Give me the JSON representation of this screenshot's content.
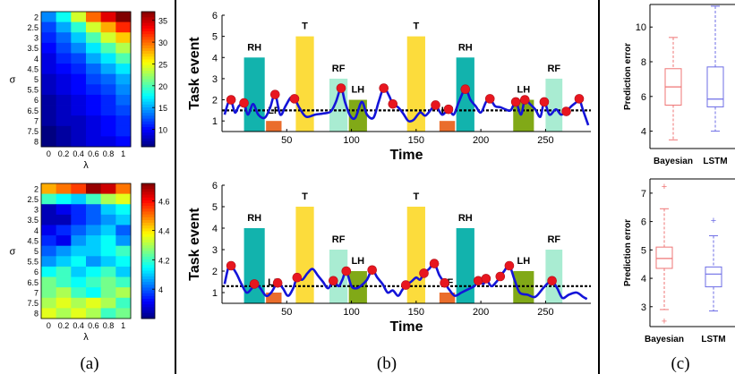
{
  "captions": {
    "a": "(a)",
    "b": "(b)",
    "c": "(c)"
  },
  "chart_data": [
    {
      "id": "heatmap-top",
      "type": "heatmap",
      "xlabel": "λ",
      "ylabel": "σ",
      "x_ticks": [
        "0",
        "0.2",
        "0.4",
        "0.6",
        "0.8",
        "1"
      ],
      "y_ticks": [
        "2",
        "2.5",
        "3",
        "3.5",
        "4",
        "4.5",
        "5",
        "5.5",
        "6",
        "6.5",
        "7",
        "7.5",
        "8"
      ],
      "colorbar_ticks": [
        10,
        15,
        20,
        25,
        30,
        35
      ],
      "clim": [
        6,
        37
      ],
      "values": [
        [
          14,
          18,
          24,
          30,
          34,
          37
        ],
        [
          12,
          15,
          19,
          24,
          28,
          32
        ],
        [
          11,
          13,
          16,
          20,
          24,
          27
        ],
        [
          10,
          12,
          14,
          17,
          20,
          23
        ],
        [
          9,
          11,
          12,
          15,
          17,
          20
        ],
        [
          9,
          10,
          11,
          13,
          15,
          17
        ],
        [
          8,
          9,
          10,
          12,
          13,
          15
        ],
        [
          8,
          9,
          10,
          11,
          12,
          14
        ],
        [
          7,
          8,
          9,
          10,
          11,
          13
        ],
        [
          7,
          8,
          9,
          10,
          11,
          12
        ],
        [
          7,
          8,
          8,
          9,
          10,
          11
        ],
        [
          6,
          7,
          8,
          9,
          10,
          11
        ],
        [
          6,
          7,
          8,
          9,
          9,
          10
        ]
      ]
    },
    {
      "id": "heatmap-bottom",
      "type": "heatmap",
      "xlabel": "λ",
      "ylabel": "σ",
      "x_ticks": [
        "0",
        "0.2",
        "0.4",
        "0.6",
        "0.8",
        "1"
      ],
      "y_ticks": [
        "2",
        "2.5",
        "3",
        "3.5",
        "4",
        "4.5",
        "5",
        "5.5",
        "6",
        "6.5",
        "7",
        "7.5",
        "8"
      ],
      "colorbar_ticks": [
        4,
        4.2,
        4.4,
        4.6
      ],
      "clim": [
        3.8,
        4.72
      ],
      "values": [
        [
          4.45,
          4.5,
          4.55,
          4.7,
          4.65,
          4.5
        ],
        [
          4.2,
          4.15,
          4.1,
          4.2,
          4.3,
          4.35
        ],
        [
          3.85,
          3.9,
          3.95,
          4.0,
          4.1,
          4.15
        ],
        [
          3.85,
          3.85,
          3.95,
          4.0,
          4.05,
          4.1
        ],
        [
          3.9,
          3.95,
          4.0,
          4.05,
          4.1,
          4.0
        ],
        [
          3.95,
          3.9,
          4.05,
          4.1,
          4.15,
          4.05
        ],
        [
          4.0,
          4.05,
          4.1,
          4.1,
          4.15,
          4.2
        ],
        [
          4.05,
          4.1,
          4.15,
          4.05,
          4.1,
          4.15
        ],
        [
          4.15,
          4.2,
          4.1,
          4.15,
          4.2,
          4.1
        ],
        [
          4.25,
          4.2,
          4.15,
          4.2,
          4.25,
          4.2
        ],
        [
          4.25,
          4.3,
          4.2,
          4.15,
          4.25,
          4.3
        ],
        [
          4.3,
          4.35,
          4.3,
          4.35,
          4.3,
          4.2
        ],
        [
          4.35,
          4.3,
          4.35,
          4.3,
          4.2,
          4.25
        ]
      ]
    },
    {
      "id": "events-top",
      "type": "bar",
      "xlabel": "Time",
      "ylabel": "Task event",
      "xlim": [
        0,
        285
      ],
      "ylim": [
        0.5,
        6
      ],
      "x_ticks": [
        50,
        100,
        150,
        200,
        250
      ],
      "y_ticks": [
        1,
        2,
        3,
        4,
        5,
        6
      ],
      "threshold": 1.5,
      "events": [
        {
          "label": "RH",
          "x0": 17,
          "x1": 33,
          "level": 4,
          "color": "#12b3ad"
        },
        {
          "label": "LF",
          "x0": 34,
          "x1": 46,
          "level": 1,
          "color": "#ea6d2c"
        },
        {
          "label": "T",
          "x0": 57,
          "x1": 71,
          "level": 5,
          "color": "#fcdc3c"
        },
        {
          "label": "RF",
          "x0": 83,
          "x1": 97,
          "level": 3,
          "color": "#a9ecd2"
        },
        {
          "label": "LH",
          "x0": 98,
          "x1": 112,
          "level": 2,
          "color": "#81a917"
        },
        {
          "label": "T",
          "x0": 143,
          "x1": 157,
          "level": 5,
          "color": "#fcdc3c"
        },
        {
          "label": "LF",
          "x0": 168,
          "x1": 180,
          "level": 1,
          "color": "#ea6d2c"
        },
        {
          "label": "RH",
          "x0": 181,
          "x1": 195,
          "level": 4,
          "color": "#12b3ad"
        },
        {
          "label": "LH",
          "x0": 225,
          "x1": 241,
          "level": 2,
          "color": "#81a917"
        },
        {
          "label": "RF",
          "x0": 250,
          "x1": 263,
          "level": 3,
          "color": "#a9ecd2"
        }
      ],
      "markers": [
        {
          "x": 7,
          "y": 2.0
        },
        {
          "x": 17,
          "y": 1.85
        },
        {
          "x": 41,
          "y": 2.25
        },
        {
          "x": 56,
          "y": 2.05
        },
        {
          "x": 92,
          "y": 2.55
        },
        {
          "x": 125,
          "y": 2.55
        },
        {
          "x": 132,
          "y": 1.8
        },
        {
          "x": 165,
          "y": 1.75
        },
        {
          "x": 175,
          "y": 1.55
        },
        {
          "x": 188,
          "y": 2.5
        },
        {
          "x": 207,
          "y": 2.05
        },
        {
          "x": 227,
          "y": 1.9
        },
        {
          "x": 234,
          "y": 2.0
        },
        {
          "x": 249,
          "y": 1.9
        },
        {
          "x": 266,
          "y": 1.45
        },
        {
          "x": 276,
          "y": 2.05
        }
      ],
      "signal": [
        [
          2,
          1.3
        ],
        [
          5,
          1.9
        ],
        [
          7,
          2.0
        ],
        [
          10,
          1.4
        ],
        [
          13,
          1.7
        ],
        [
          17,
          1.85
        ],
        [
          20,
          1.3
        ],
        [
          24,
          1.8
        ],
        [
          28,
          1.3
        ],
        [
          33,
          1.15
        ],
        [
          37,
          1.6
        ],
        [
          41,
          2.25
        ],
        [
          45,
          1.3
        ],
        [
          49,
          1.7
        ],
        [
          53,
          2.1
        ],
        [
          56,
          2.05
        ],
        [
          60,
          1.6
        ],
        [
          65,
          1.2
        ],
        [
          72,
          1.3
        ],
        [
          78,
          1.35
        ],
        [
          84,
          1.45
        ],
        [
          88,
          1.9
        ],
        [
          92,
          2.55
        ],
        [
          95,
          1.9
        ],
        [
          99,
          1.25
        ],
        [
          103,
          1.15
        ],
        [
          108,
          1.9
        ],
        [
          112,
          1.3
        ],
        [
          117,
          1.15
        ],
        [
          121,
          1.9
        ],
        [
          125,
          2.55
        ],
        [
          129,
          2.2
        ],
        [
          132,
          1.8
        ],
        [
          136,
          1.65
        ],
        [
          140,
          1.35
        ],
        [
          144,
          1.0
        ],
        [
          148,
          1.05
        ],
        [
          153,
          1.4
        ],
        [
          157,
          1.25
        ],
        [
          161,
          1.5
        ],
        [
          165,
          1.75
        ],
        [
          170,
          1.3
        ],
        [
          175,
          1.55
        ],
        [
          179,
          1.3
        ],
        [
          183,
          1.9
        ],
        [
          188,
          2.5
        ],
        [
          192,
          2.0
        ],
        [
          196,
          1.7
        ],
        [
          200,
          1.4
        ],
        [
          204,
          1.9
        ],
        [
          207,
          2.05
        ],
        [
          211,
          1.7
        ],
        [
          215,
          1.65
        ],
        [
          219,
          1.55
        ],
        [
          223,
          1.5
        ],
        [
          227,
          1.9
        ],
        [
          231,
          1.3
        ],
        [
          234,
          2.0
        ],
        [
          238,
          1.8
        ],
        [
          242,
          1.55
        ],
        [
          246,
          1.2
        ],
        [
          249,
          1.9
        ],
        [
          253,
          1.3
        ],
        [
          258,
          1.55
        ],
        [
          262,
          1.3
        ],
        [
          266,
          1.45
        ],
        [
          270,
          1.7
        ],
        [
          274,
          1.9
        ],
        [
          276,
          2.05
        ],
        [
          279,
          1.5
        ],
        [
          283,
          0.8
        ]
      ]
    },
    {
      "id": "events-bottom",
      "type": "bar",
      "xlabel": "Time",
      "ylabel": "Task event",
      "xlim": [
        0,
        285
      ],
      "ylim": [
        0.5,
        6
      ],
      "x_ticks": [
        50,
        100,
        150,
        200,
        250
      ],
      "y_ticks": [
        1,
        2,
        3,
        4,
        5,
        6
      ],
      "threshold": 1.3,
      "events": [
        {
          "label": "RH",
          "x0": 17,
          "x1": 33,
          "level": 4,
          "color": "#12b3ad"
        },
        {
          "label": "LF",
          "x0": 34,
          "x1": 46,
          "level": 1,
          "color": "#ea6d2c"
        },
        {
          "label": "T",
          "x0": 57,
          "x1": 71,
          "level": 5,
          "color": "#fcdc3c"
        },
        {
          "label": "RF",
          "x0": 83,
          "x1": 97,
          "level": 3,
          "color": "#a9ecd2"
        },
        {
          "label": "LH",
          "x0": 98,
          "x1": 112,
          "level": 2,
          "color": "#81a917"
        },
        {
          "label": "T",
          "x0": 143,
          "x1": 157,
          "level": 5,
          "color": "#fcdc3c"
        },
        {
          "label": "LF",
          "x0": 168,
          "x1": 180,
          "level": 1,
          "color": "#ea6d2c"
        },
        {
          "label": "RH",
          "x0": 181,
          "x1": 195,
          "level": 4,
          "color": "#12b3ad"
        },
        {
          "label": "LH",
          "x0": 225,
          "x1": 241,
          "level": 2,
          "color": "#81a917"
        },
        {
          "label": "RF",
          "x0": 250,
          "x1": 263,
          "level": 3,
          "color": "#a9ecd2"
        }
      ],
      "markers": [
        {
          "x": 7,
          "y": 2.25
        },
        {
          "x": 25,
          "y": 1.4
        },
        {
          "x": 43,
          "y": 1.45
        },
        {
          "x": 58,
          "y": 1.7
        },
        {
          "x": 86,
          "y": 1.55
        },
        {
          "x": 96,
          "y": 2.0
        },
        {
          "x": 116,
          "y": 2.05
        },
        {
          "x": 142,
          "y": 1.35
        },
        {
          "x": 156,
          "y": 1.9
        },
        {
          "x": 164,
          "y": 2.35
        },
        {
          "x": 172,
          "y": 1.45
        },
        {
          "x": 198,
          "y": 1.55
        },
        {
          "x": 204,
          "y": 1.65
        },
        {
          "x": 215,
          "y": 1.75
        },
        {
          "x": 222,
          "y": 2.25
        },
        {
          "x": 255,
          "y": 1.55
        }
      ],
      "signal": [
        [
          2,
          1.4
        ],
        [
          5,
          2.2
        ],
        [
          7,
          2.25
        ],
        [
          11,
          1.9
        ],
        [
          15,
          1.4
        ],
        [
          19,
          1.0
        ],
        [
          23,
          1.2
        ],
        [
          25,
          1.4
        ],
        [
          29,
          1.25
        ],
        [
          34,
          0.85
        ],
        [
          38,
          1.0
        ],
        [
          43,
          1.45
        ],
        [
          47,
          1.2
        ],
        [
          51,
          0.85
        ],
        [
          55,
          1.2
        ],
        [
          58,
          1.7
        ],
        [
          62,
          1.6
        ],
        [
          66,
          1.9
        ],
        [
          70,
          2.1
        ],
        [
          74,
          1.8
        ],
        [
          78,
          1.5
        ],
        [
          82,
          1.2
        ],
        [
          86,
          1.55
        ],
        [
          90,
          1.3
        ],
        [
          93,
          1.6
        ],
        [
          96,
          2.0
        ],
        [
          100,
          1.3
        ],
        [
          104,
          1.2
        ],
        [
          108,
          1.35
        ],
        [
          112,
          1.6
        ],
        [
          116,
          2.05
        ],
        [
          120,
          1.7
        ],
        [
          124,
          1.4
        ],
        [
          128,
          1.0
        ],
        [
          132,
          1.1
        ],
        [
          136,
          0.85
        ],
        [
          139,
          1.1
        ],
        [
          142,
          1.35
        ],
        [
          146,
          1.5
        ],
        [
          150,
          1.7
        ],
        [
          153,
          1.6
        ],
        [
          156,
          1.9
        ],
        [
          160,
          2.1
        ],
        [
          164,
          2.35
        ],
        [
          168,
          1.8
        ],
        [
          172,
          1.45
        ],
        [
          176,
          1.1
        ],
        [
          180,
          0.85
        ],
        [
          185,
          1.0
        ],
        [
          190,
          1.15
        ],
        [
          195,
          1.3
        ],
        [
          198,
          1.55
        ],
        [
          202,
          1.4
        ],
        [
          204,
          1.65
        ],
        [
          208,
          1.3
        ],
        [
          212,
          1.5
        ],
        [
          215,
          1.75
        ],
        [
          218,
          2.0
        ],
        [
          222,
          2.25
        ],
        [
          226,
          1.6
        ],
        [
          230,
          1.0
        ],
        [
          236,
          0.9
        ],
        [
          242,
          0.8
        ],
        [
          248,
          1.2
        ],
        [
          252,
          1.45
        ],
        [
          255,
          1.55
        ],
        [
          259,
          1.2
        ],
        [
          263,
          0.75
        ],
        [
          268,
          0.9
        ],
        [
          274,
          1.0
        ],
        [
          279,
          0.8
        ],
        [
          282,
          0.7
        ]
      ]
    },
    {
      "id": "box-top",
      "type": "box",
      "ylabel": "Prediction error",
      "y_ticks": [
        4,
        6,
        8,
        10
      ],
      "ylim": [
        3.0,
        11.3
      ],
      "categories": [
        "Bayesian",
        "LSTM"
      ],
      "boxes": [
        {
          "name": "Bayesian",
          "min": 3.5,
          "q1": 5.5,
          "median": 6.55,
          "q3": 7.6,
          "max": 9.4,
          "color": "#ef7676"
        },
        {
          "name": "LSTM",
          "min": 4.0,
          "q1": 5.4,
          "median": 5.85,
          "q3": 7.7,
          "max": 11.2,
          "color": "#6d6de6"
        }
      ],
      "outliers": []
    },
    {
      "id": "box-bottom",
      "type": "box",
      "ylabel": "Prediction error",
      "y_ticks": [
        3,
        4,
        5,
        6,
        7
      ],
      "ylim": [
        2.3,
        7.5
      ],
      "categories": [
        "Bayesian",
        "LSTM"
      ],
      "boxes": [
        {
          "name": "Bayesian",
          "min": 2.9,
          "q1": 4.35,
          "median": 4.7,
          "q3": 5.1,
          "max": 6.45,
          "color": "#ef7676"
        },
        {
          "name": "LSTM",
          "min": 2.85,
          "q1": 3.7,
          "median": 4.15,
          "q3": 4.4,
          "max": 5.5,
          "color": "#6d6de6"
        }
      ],
      "outliers": [
        {
          "series": "Bayesian",
          "values": [
            7.25,
            2.5
          ]
        },
        {
          "series": "LSTM",
          "values": [
            6.05
          ]
        }
      ]
    }
  ]
}
